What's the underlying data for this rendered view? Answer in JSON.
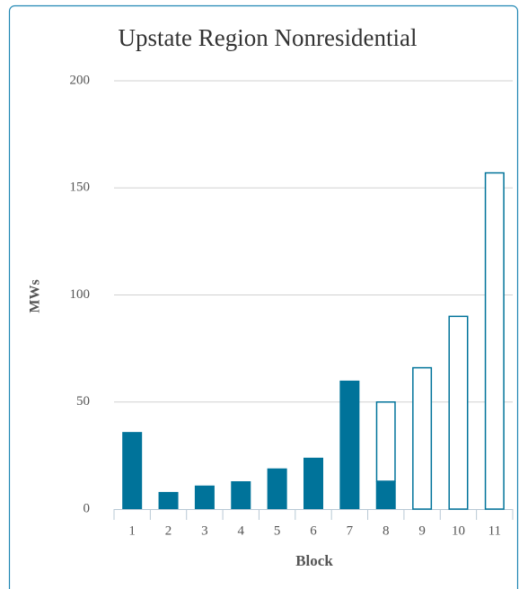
{
  "chart_data": {
    "type": "stacked-bar",
    "title": "Upstate Region Nonresidential",
    "x_label": "Block",
    "y_label": "MWs",
    "categories": [
      1,
      2,
      3,
      4,
      5,
      6,
      7,
      8,
      9,
      10,
      11
    ],
    "series": [
      {
        "color": "#00739a",
        "style": "filled",
        "values": [
          36,
          8,
          11,
          13,
          19,
          24,
          60,
          13,
          null,
          null,
          null
        ]
      },
      {
        "color": "#00739a",
        "style": "outline",
        "values": [
          null,
          null,
          null,
          null,
          null,
          null,
          null,
          37,
          66,
          90,
          157
        ]
      }
    ],
    "ylim": [
      0,
      200
    ],
    "yticks": [
      0,
      50,
      100,
      150,
      200
    ],
    "grid": true
  }
}
